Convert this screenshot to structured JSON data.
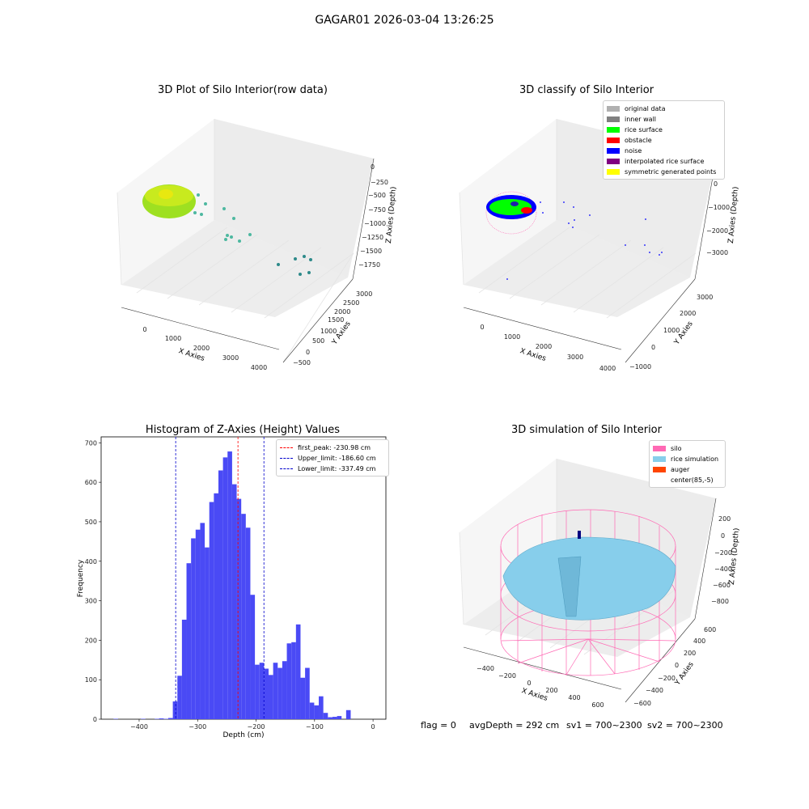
{
  "figure_title": "GAGAR01 2026-03-04 13:26:25",
  "footer": {
    "flag": "flag = 0",
    "avg_depth": "avgDepth = 292 cm",
    "sv1": "sv1 = 700~2300",
    "sv2": "sv2 = 700~2300"
  },
  "colors": {
    "rice_surface": "#00ff00",
    "obstacle": "#ff0000",
    "noise": "#0000ff",
    "silo": "#ff69b4",
    "rice_sim": "#87ceeb",
    "auger": "#ff4500",
    "hist_bar": "#4a4af5",
    "peak_line": "#ff0000",
    "limit_line": "#0000cc"
  },
  "chart_data": [
    {
      "type": "scatter",
      "title": "3D Plot of Silo Interior(row data)",
      "xlabel": "X Axies",
      "ylabel": "Y Axies",
      "zlabel": "Z Axies (Depth)",
      "x_ticks": [
        "0",
        "1000",
        "2000",
        "3000",
        "4000"
      ],
      "y_ticks": [
        "−500",
        "0",
        "500",
        "1000",
        "1500",
        "2000",
        "2500",
        "3000"
      ],
      "z_ticks": [
        "0",
        "−250",
        "−500",
        "−750",
        "−1000",
        "−1250",
        "−1500",
        "−1750"
      ]
    },
    {
      "type": "scatter",
      "title": "3D classify of Silo Interior",
      "xlabel": "X Axies",
      "ylabel": "Y Axies",
      "zlabel": "Z Axies (Depth)",
      "x_ticks": [
        "0",
        "1000",
        "2000",
        "3000",
        "4000"
      ],
      "y_ticks": [
        "−1000",
        "0",
        "1000",
        "2000",
        "3000"
      ],
      "z_ticks": [
        "0",
        "−1000",
        "−2000",
        "−3000"
      ],
      "legend": [
        {
          "label": "original data",
          "color": "#b0b0b0"
        },
        {
          "label": "inner wall",
          "color": "#808080"
        },
        {
          "label": "rice surface",
          "color": "#00ff00"
        },
        {
          "label": "obstacle",
          "color": "#ff0000"
        },
        {
          "label": "noise",
          "color": "#0000ff"
        },
        {
          "label": "interpolated rice surface",
          "color": "#800080"
        },
        {
          "label": "symmetric generated points",
          "color": "#ffff00"
        }
      ]
    },
    {
      "type": "bar",
      "title": "Histogram of Z-Axies (Height) Values",
      "xlabel": "Depth (cm)",
      "ylabel": "Frequency",
      "xlim": [
        -465,
        22
      ],
      "ylim": [
        0,
        715
      ],
      "bin_width": 7.8,
      "x_ticks": [
        -400,
        -300,
        -200,
        -100,
        0
      ],
      "x_tick_labels": [
        "−400",
        "−300",
        "−200",
        "−100",
        "0"
      ],
      "y_ticks": [
        0,
        100,
        200,
        300,
        400,
        500,
        600,
        700
      ],
      "bins_start": [
        -443.8,
        -436.0,
        -428.2,
        -420.4,
        -412.6,
        -404.8,
        -397.0,
        -389.2,
        -381.4,
        -373.6,
        -365.8,
        -358.0,
        -350.2,
        -342.4,
        -334.6,
        -326.8,
        -319.0,
        -311.2,
        -303.4,
        -295.6,
        -287.8,
        -280.0,
        -272.2,
        -264.4,
        -256.6,
        -248.8,
        -241.0,
        -233.2,
        -225.4,
        -217.6,
        -209.8,
        -202.0,
        -194.2,
        -186.4,
        -178.6,
        -170.8,
        -163.0,
        -155.2,
        -147.4,
        -139.6,
        -131.8,
        -124.0,
        -116.2,
        -108.4,
        -100.6,
        -92.8,
        -85.0,
        -77.2,
        -69.4,
        -61.6,
        -53.8,
        -46.0,
        -38.2,
        -30.4,
        -22.6,
        -14.8,
        -7.0
      ],
      "values": [
        1,
        0,
        0,
        0,
        0,
        0,
        1,
        0,
        0,
        1,
        2,
        1,
        3,
        45,
        110,
        252,
        395,
        458,
        480,
        497,
        435,
        550,
        572,
        630,
        663,
        678,
        595,
        558,
        520,
        485,
        315,
        138,
        143,
        128,
        112,
        143,
        130,
        147,
        192,
        195,
        240,
        105,
        130,
        42,
        35,
        58,
        16,
        5,
        6,
        8,
        0,
        23,
        0,
        0,
        0,
        0,
        0
      ],
      "vlines": [
        {
          "label": "first_peak: -230.98 cm",
          "x": -230.98,
          "color": "#ff0000"
        },
        {
          "label": "Upper_limit: -186.60 cm",
          "x": -186.6,
          "color": "#0000cc"
        },
        {
          "label": "Lower_limit: -337.49 cm",
          "x": -337.49,
          "color": "#0000cc"
        }
      ]
    },
    {
      "type": "area",
      "title": "3D simulation of Silo Interior",
      "xlabel": "X Axies",
      "ylabel": "Y Axies",
      "zlabel": "Z Axies (Depth)",
      "x_ticks": [
        "−400",
        "−200",
        "0",
        "200",
        "400",
        "600"
      ],
      "y_ticks": [
        "−600",
        "−400",
        "−200",
        "0",
        "200",
        "400",
        "600"
      ],
      "z_ticks": [
        "200",
        "0",
        "−200",
        "−400",
        "−600",
        "−800"
      ],
      "legend": [
        {
          "label": "silo",
          "color": "#ff69b4"
        },
        {
          "label": "rice simulation",
          "color": "#87ceeb"
        },
        {
          "label": "auger",
          "color": "#ff4500"
        },
        {
          "label": "center(85,-5)",
          "color": "#ffffff"
        }
      ]
    }
  ]
}
